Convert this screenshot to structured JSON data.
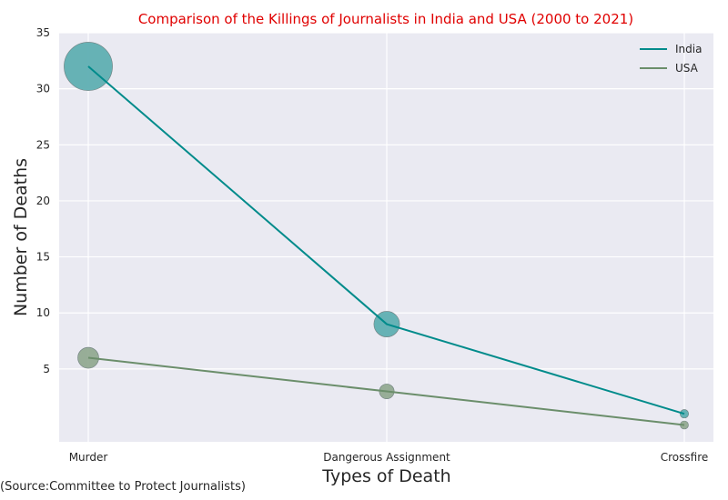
{
  "chart_data": {
    "type": "line",
    "title": "Comparison of the Killings of Journalists in India and USA (2000 to 2021)",
    "title_color": "#e00000",
    "xlabel": "Types of Death",
    "ylabel": "Number of Deaths",
    "categories": [
      "Murder",
      "Dangerous Assignment",
      "Crossfire"
    ],
    "ylim": [
      -1.5,
      35
    ],
    "yticks": [
      5,
      10,
      15,
      20,
      25,
      30,
      35
    ],
    "grid": true,
    "background": "#eaeaf2",
    "legend_position": "top-right",
    "markers": "bubble sized by value",
    "series": [
      {
        "name": "India",
        "values": [
          32,
          9,
          1
        ],
        "color": "#008b8b",
        "bubble_color": "#5aacb0"
      },
      {
        "name": "USA",
        "values": [
          6,
          3,
          0
        ],
        "color": "#6b8e6b",
        "bubble_color": "#8fa78f"
      }
    ]
  },
  "source_note": "(Source:Committee to Protect Journalists)"
}
